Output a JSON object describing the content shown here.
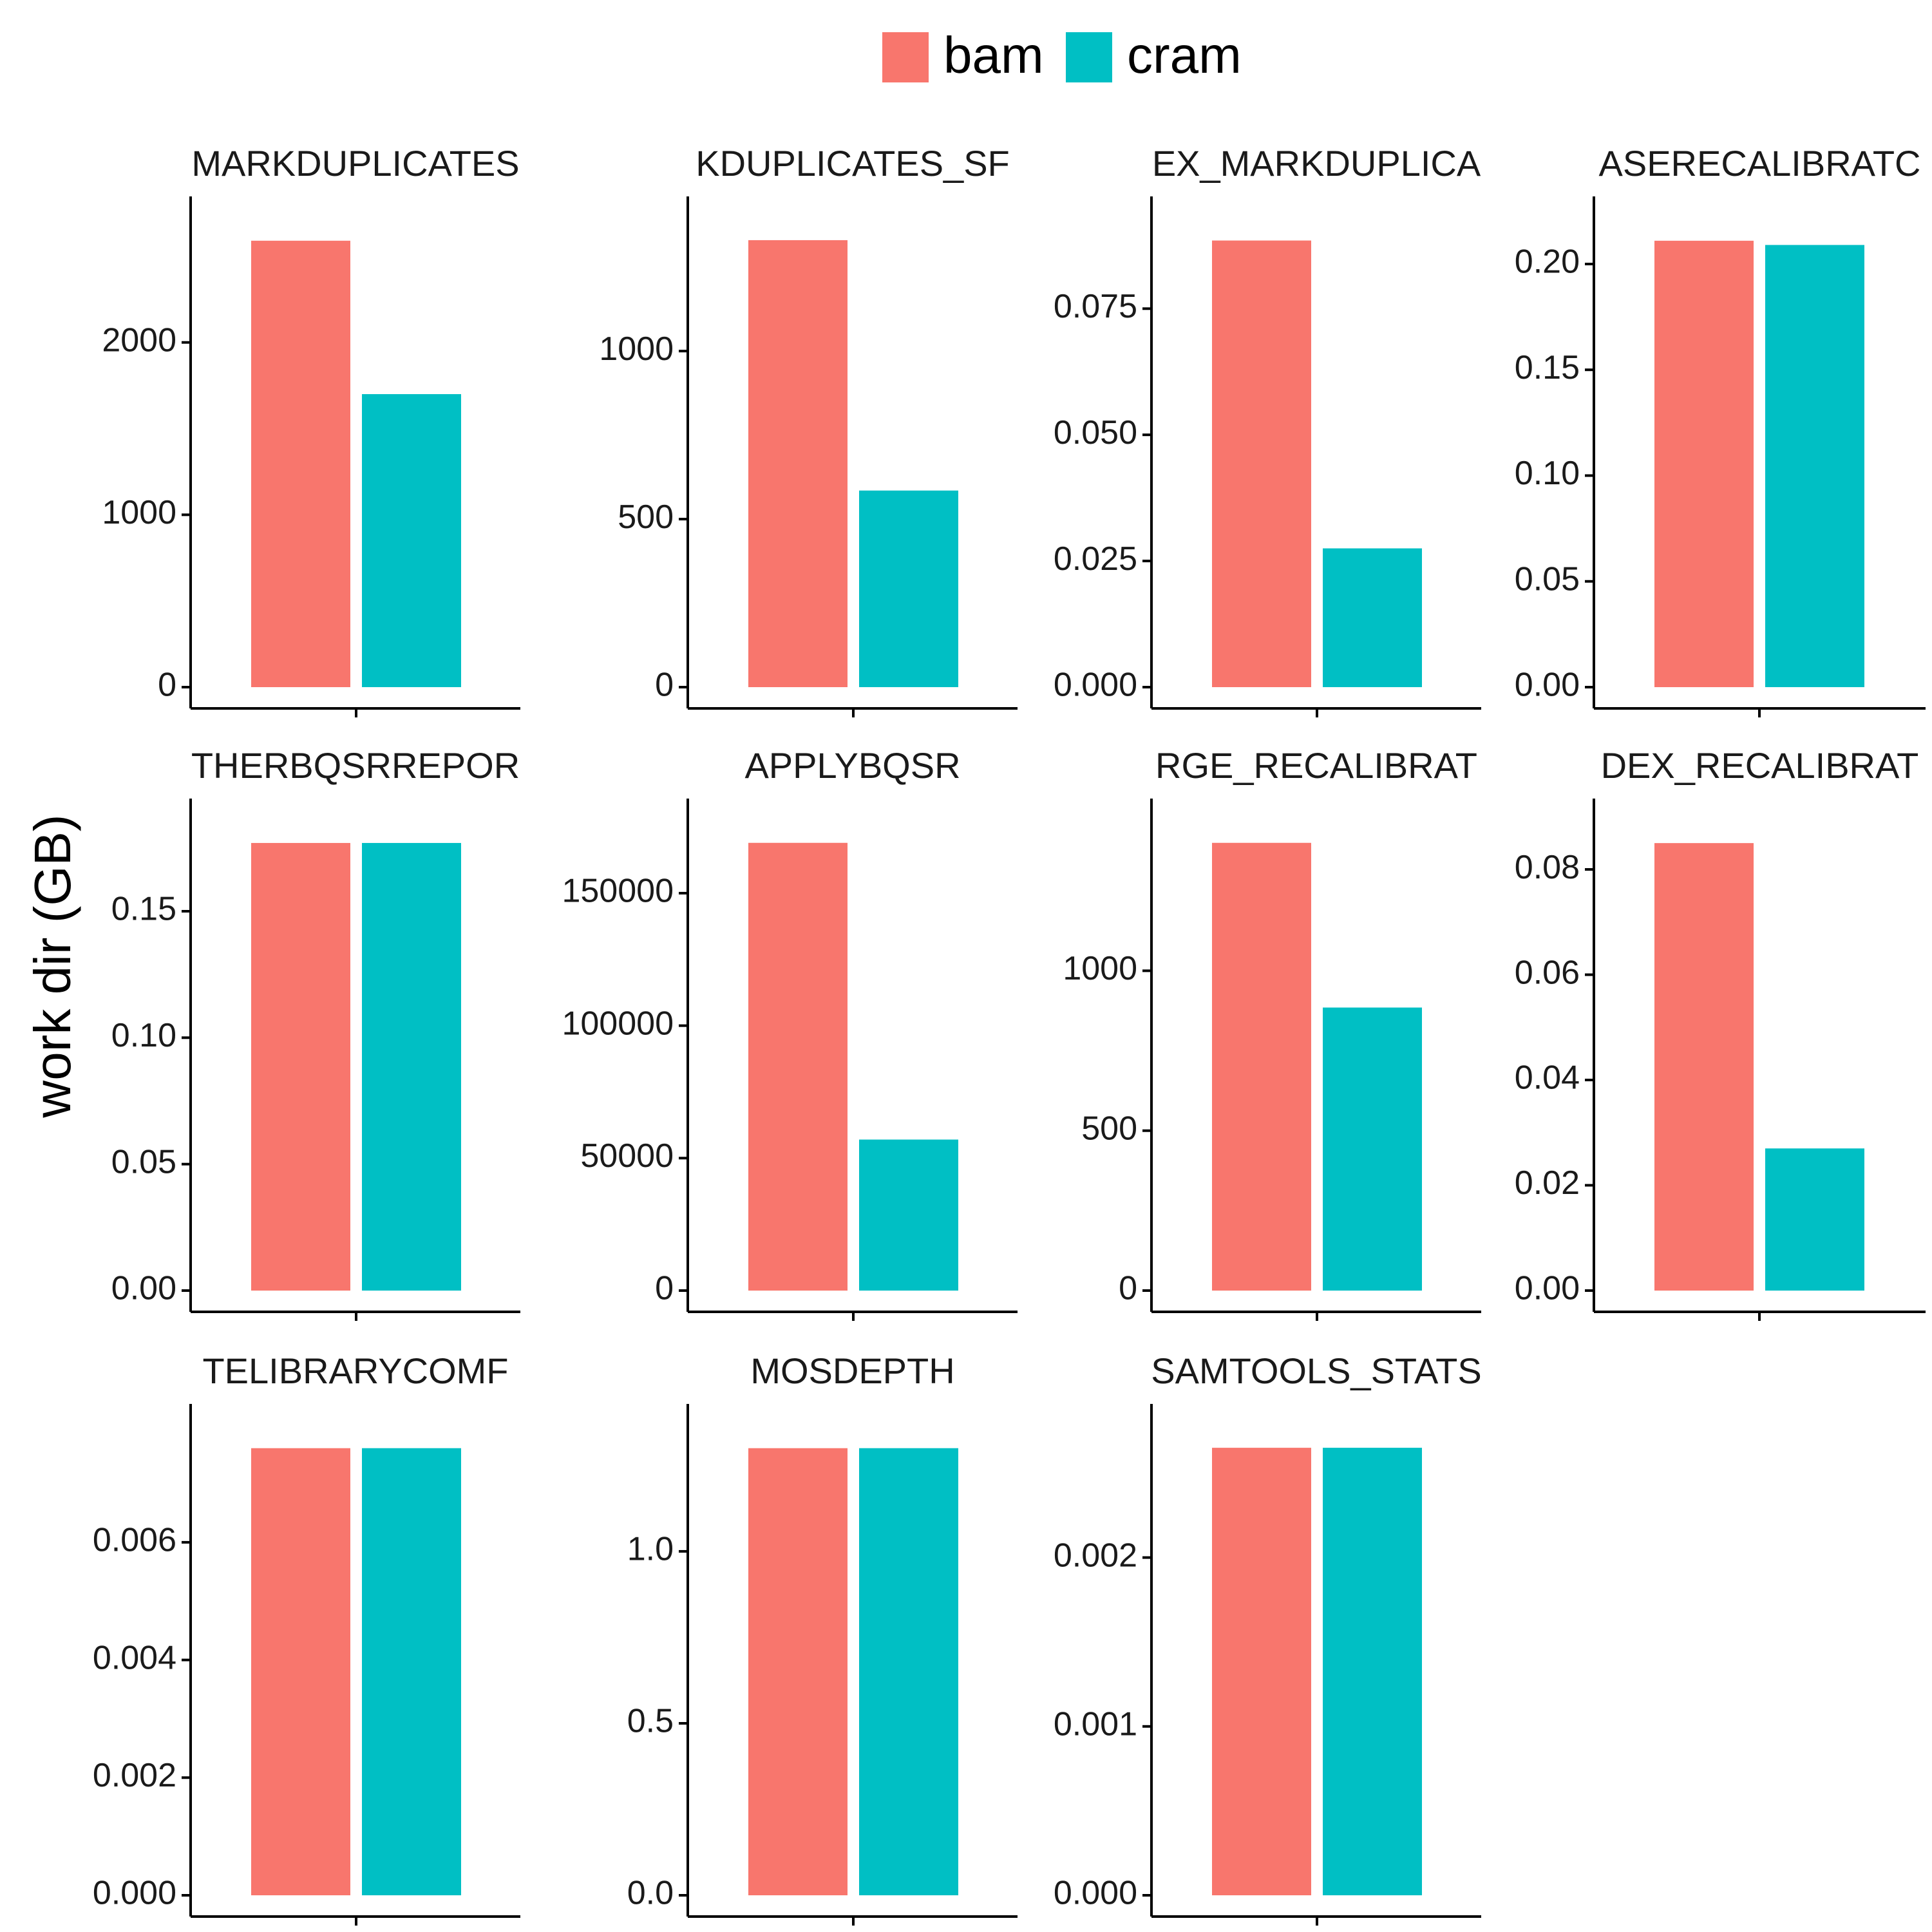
{
  "chart_data": {
    "type": "bar",
    "ylabel": "work dir (GB)",
    "xlabel": "",
    "legend": {
      "position": "top",
      "entries": [
        {
          "name": "bam",
          "color": "#F8766D"
        },
        {
          "name": "cram",
          "color": "#00BFC4"
        }
      ]
    },
    "grid": false,
    "categories": [
      "bam",
      "cram"
    ],
    "panels": [
      {
        "label": "MARKDUPLICATES",
        "values": [
          2590,
          1700
        ],
        "ylim": [
          0,
          2720
        ],
        "ticks": [
          "0",
          "1000",
          "2000"
        ],
        "tick_values": [
          0,
          1000,
          2000
        ]
      },
      {
        "label": "KDUPLICATES_SF",
        "values": [
          1330,
          585
        ],
        "ylim": [
          0,
          1395
        ],
        "ticks": [
          "0",
          "500",
          "1000"
        ],
        "tick_values": [
          0,
          500,
          1000
        ]
      },
      {
        "label": "EX_MARKDUPLICA",
        "values": [
          0.0885,
          0.0275
        ],
        "ylim": [
          0,
          0.0929
        ],
        "ticks": [
          "0.000",
          "0.025",
          "0.050",
          "0.075"
        ],
        "tick_values": [
          0,
          0.025,
          0.05,
          0.075
        ]
      },
      {
        "label": "ASERECALIBRATC",
        "values": [
          0.211,
          0.209
        ],
        "ylim": [
          0,
          0.2216
        ],
        "ticks": [
          "0.00",
          "0.05",
          "0.10",
          "0.15",
          "0.20"
        ],
        "tick_values": [
          0,
          0.05,
          0.1,
          0.15,
          0.2
        ]
      },
      {
        "label": "THERBQSRREPOR",
        "values": [
          0.177,
          0.177
        ],
        "ylim": [
          0,
          0.1859
        ],
        "ticks": [
          "0.00",
          "0.05",
          "0.10",
          "0.15"
        ],
        "tick_values": [
          0,
          0.05,
          0.1,
          0.15
        ]
      },
      {
        "label": "APPLYBQSR",
        "values": [
          169000,
          57000
        ],
        "ylim": [
          0,
          177450
        ],
        "ticks": [
          "0",
          "50000",
          "100000",
          "150000"
        ],
        "tick_values": [
          0,
          50000,
          100000,
          150000
        ]
      },
      {
        "label": "RGE_RECALIBRAT",
        "values": [
          1400,
          885
        ],
        "ylim": [
          0,
          1470
        ],
        "ticks": [
          "0",
          "500",
          "1000"
        ],
        "tick_values": [
          0,
          500,
          1000
        ]
      },
      {
        "label": "DEX_RECALIBRAT",
        "values": [
          0.085,
          0.027
        ],
        "ylim": [
          0,
          0.0893
        ],
        "ticks": [
          "0.00",
          "0.02",
          "0.04",
          "0.06",
          "0.08"
        ],
        "tick_values": [
          0,
          0.02,
          0.04,
          0.06,
          0.08
        ]
      },
      {
        "label": "TELIBRARYCOMF",
        "values": [
          0.0076,
          0.0076
        ],
        "ylim": [
          0,
          0.00798
        ],
        "ticks": [
          "0.000",
          "0.002",
          "0.004",
          "0.006"
        ],
        "tick_values": [
          0,
          0.002,
          0.004,
          0.006
        ]
      },
      {
        "label": "MOSDEPTH",
        "values": [
          1.3,
          1.3
        ],
        "ylim": [
          0,
          1.365
        ],
        "ticks": [
          "0.0",
          "0.5",
          "1.0"
        ],
        "tick_values": [
          0,
          0.5,
          1.0
        ]
      },
      {
        "label": "SAMTOOLS_STATS",
        "values": [
          0.00265,
          0.00265
        ],
        "ylim": [
          0,
          0.00278
        ],
        "ticks": [
          "0.000",
          "0.001",
          "0.002"
        ],
        "tick_values": [
          0,
          0.001,
          0.002
        ]
      }
    ]
  }
}
